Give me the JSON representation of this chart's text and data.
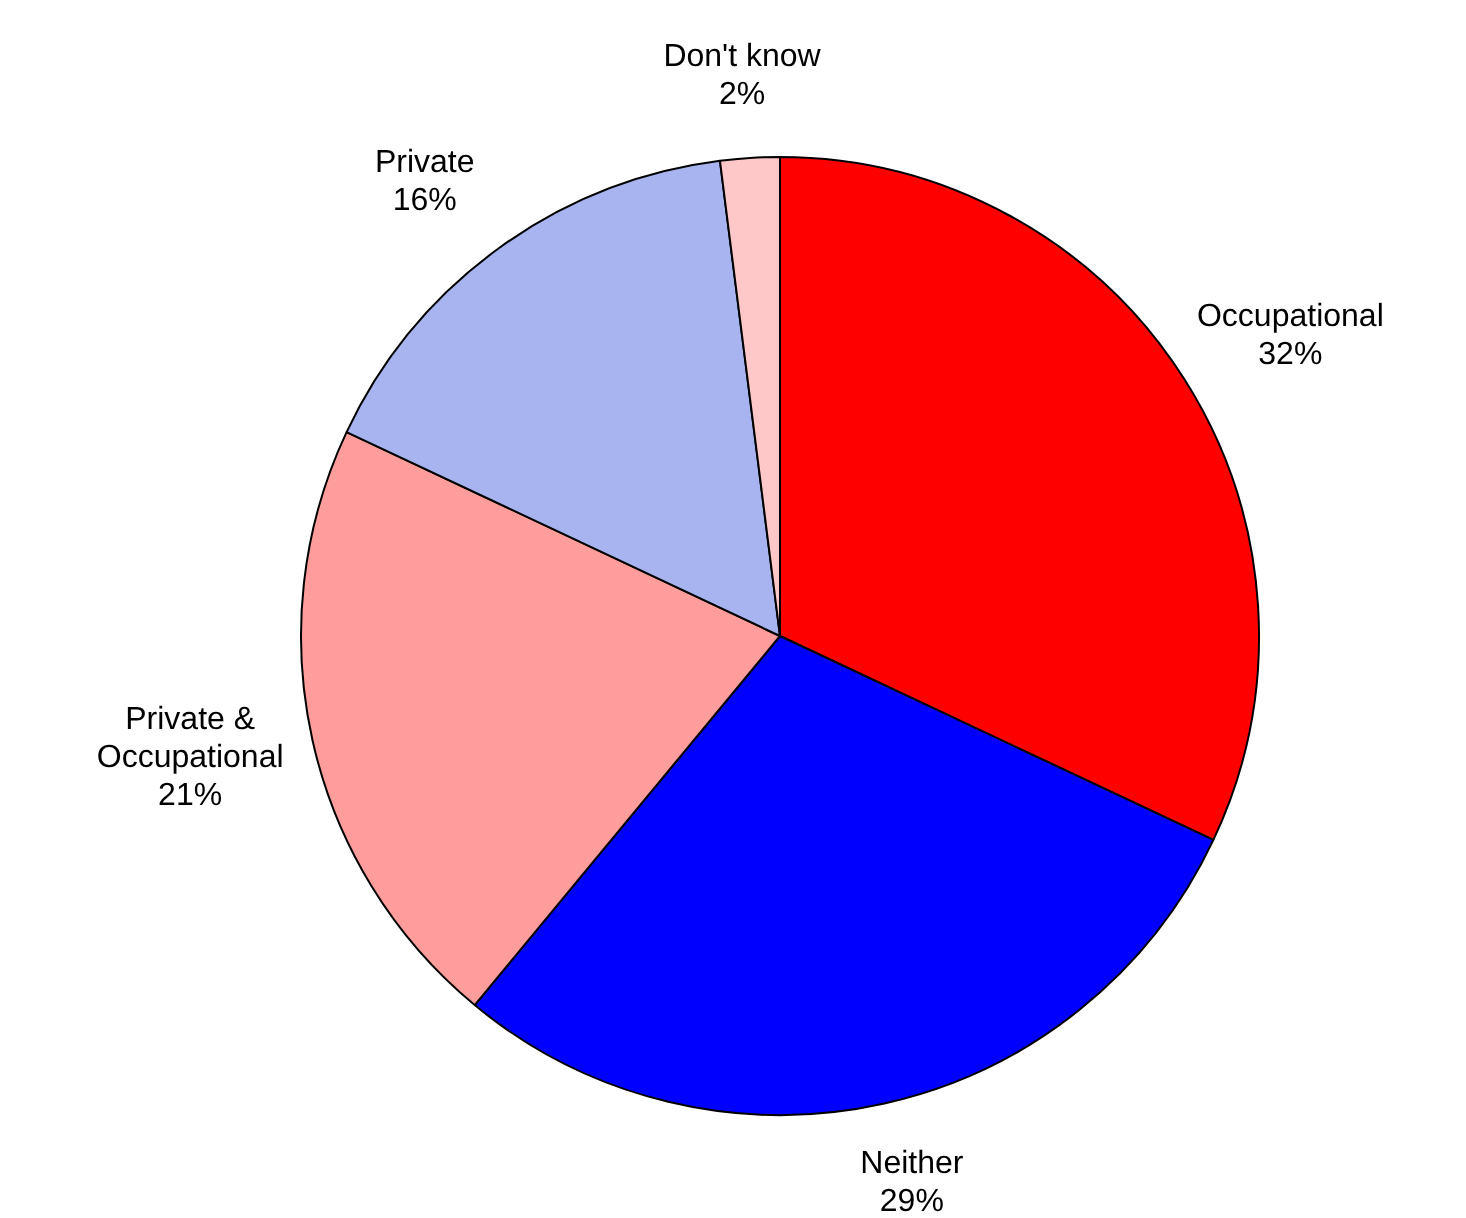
{
  "chart_data": {
    "type": "pie",
    "categories": [
      "Occupational",
      "Neither",
      "Private & Occupational",
      "Private",
      "Don't know"
    ],
    "values": [
      32,
      29,
      21,
      16,
      2
    ],
    "value_labels": [
      "32%",
      "29%",
      "21%",
      "16%",
      "2%"
    ],
    "colors": [
      "#ff0000",
      "#0000ff",
      "#ff9c9c",
      "#a8b4f0",
      "#ffc8c8"
    ],
    "legend": false
  }
}
